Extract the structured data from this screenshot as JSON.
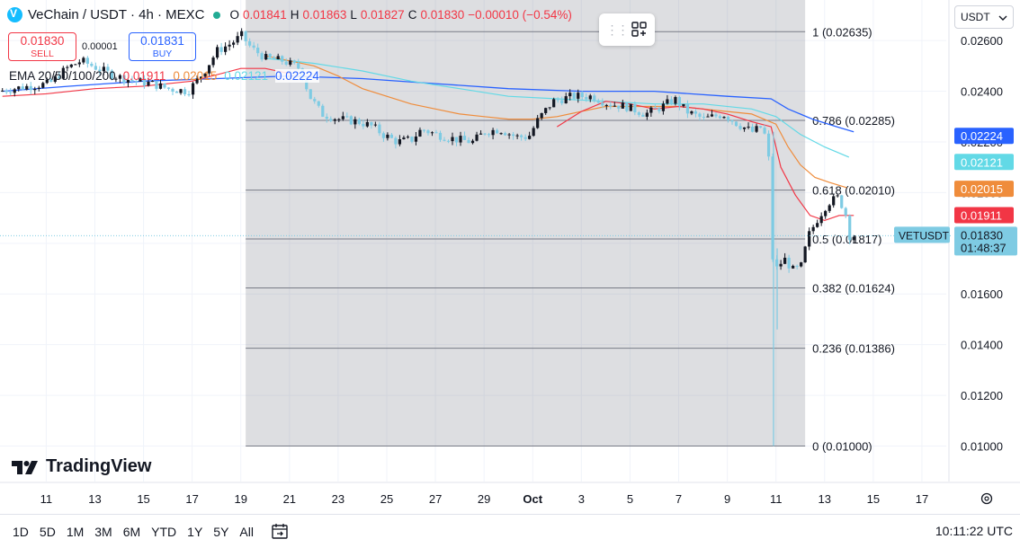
{
  "header": {
    "title": "VeChain / USDT · 4h · MEXC",
    "ohlc": [
      {
        "k": "O",
        "v": "0.01841"
      },
      {
        "k": "H",
        "v": "0.01863"
      },
      {
        "k": "L",
        "v": "0.01827"
      },
      {
        "k": "C",
        "v": "0.01830"
      }
    ],
    "change": "−0.00010 (−0.54%)"
  },
  "trade": {
    "sell_price": "0.01830",
    "sell_label": "SELL",
    "spread": "0.00001",
    "buy_price": "0.01831",
    "buy_label": "BUY"
  },
  "ema_legend": {
    "label": "EMA 20/50/100/200",
    "ema20": "0.01911",
    "ema50": "0.02015",
    "ema100": "0.02121",
    "ema200": "0.02224"
  },
  "currency_select": "USDT",
  "brand": "TradingView",
  "time_ranges": [
    "1D",
    "5D",
    "1M",
    "3M",
    "6M",
    "YTD",
    "1Y",
    "5Y",
    "All"
  ],
  "clock": "10:11:22 UTC",
  "colors": {
    "up": "#131722",
    "down": "#7ecbe3",
    "ema20": "#f23645",
    "ema50": "#ef8c3b",
    "ema100": "#62d9e6",
    "ema200": "#2962ff"
  },
  "chart_data": {
    "type": "candlestick",
    "symbol": "VETUSDT",
    "timeframe": "4h",
    "ylim": [
      0.0086,
      0.0276
    ],
    "y_ticks": [
      "0.02600",
      "0.02400",
      "0.02200",
      "0.02000",
      "0.01800",
      "0.01600",
      "0.01400",
      "0.01200",
      "0.01000"
    ],
    "y_tick_values": [
      0.026,
      0.024,
      0.022,
      0.02,
      0.018,
      0.016,
      0.014,
      0.012,
      0.01
    ],
    "x_range": [
      9.1,
      18.0
    ],
    "x_ticks": [
      {
        "t": 11,
        "label": "11"
      },
      {
        "t": 13,
        "label": "13"
      },
      {
        "t": 15,
        "label": "15"
      },
      {
        "t": 17,
        "label": "17"
      },
      {
        "t": 19,
        "label": "19"
      },
      {
        "t": 21,
        "label": "21"
      },
      {
        "t": 23,
        "label": "23"
      },
      {
        "t": 25,
        "label": "25"
      },
      {
        "t": 27,
        "label": "27"
      },
      {
        "t": 29,
        "label": "29"
      },
      {
        "t": 31,
        "label": "Oct"
      },
      {
        "t": 33,
        "label": "3"
      },
      {
        "t": 35,
        "label": "5"
      },
      {
        "t": 37,
        "label": "7"
      },
      {
        "t": 39,
        "label": "9"
      },
      {
        "t": 41,
        "label": "11"
      },
      {
        "t": 43,
        "label": "13"
      },
      {
        "t": 45,
        "label": "15"
      },
      {
        "t": 47,
        "label": "17"
      }
    ],
    "fib": {
      "t_start": 19.2,
      "t_end": 42.2,
      "levels": [
        {
          "label": "1 (0.02635)",
          "value": 0.02635
        },
        {
          "label": "0.786 (0.02285)",
          "value": 0.02285
        },
        {
          "label": "0.618 (0.02010)",
          "value": 0.0201
        },
        {
          "label": "0.5 (0.01817)",
          "value": 0.01817
        },
        {
          "label": "0.382 (0.01624)",
          "value": 0.01624
        },
        {
          "label": "0.236 (0.01386)",
          "value": 0.01386
        },
        {
          "label": "0 (0.01000)",
          "value": 0.01
        }
      ]
    },
    "last_price": {
      "label": "VETUSDT",
      "value": 0.0183,
      "price": "0.01830",
      "countdown": "01:48:37"
    },
    "ema_tags": [
      {
        "series": "ema200",
        "value": 0.02224,
        "text": "0.02224"
      },
      {
        "series": "ema100",
        "value": 0.02121,
        "text": "0.02121"
      },
      {
        "series": "ema50",
        "value": 0.02015,
        "text": "0.02015"
      },
      {
        "series": "ema20",
        "value": 0.01911,
        "text": "0.01911"
      }
    ],
    "price_path": [
      [
        9.2,
        0.024
      ],
      [
        9.8,
        0.0241
      ],
      [
        10.5,
        0.0242
      ],
      [
        11.3,
        0.0243
      ],
      [
        12.0,
        0.0249
      ],
      [
        12.6,
        0.0252
      ],
      [
        13.3,
        0.0249
      ],
      [
        14.0,
        0.0246
      ],
      [
        14.8,
        0.0244
      ],
      [
        15.5,
        0.0243
      ],
      [
        16.2,
        0.0241
      ],
      [
        17.0,
        0.024
      ],
      [
        17.6,
        0.0247
      ],
      [
        18.2,
        0.0256
      ],
      [
        18.8,
        0.0259
      ],
      [
        19.2,
        0.0262
      ],
      [
        19.6,
        0.0257
      ],
      [
        20.2,
        0.0253
      ],
      [
        20.9,
        0.0252
      ],
      [
        21.6,
        0.0249
      ],
      [
        22.0,
        0.0238
      ],
      [
        22.5,
        0.0231
      ],
      [
        23.2,
        0.0229
      ],
      [
        24.0,
        0.0228
      ],
      [
        24.6,
        0.0226
      ],
      [
        25.0,
        0.0223
      ],
      [
        25.6,
        0.022
      ],
      [
        26.2,
        0.0221
      ],
      [
        26.6,
        0.0225
      ],
      [
        27.2,
        0.0223
      ],
      [
        28.0,
        0.0221
      ],
      [
        28.7,
        0.022
      ],
      [
        29.2,
        0.0224
      ],
      [
        29.8,
        0.0225
      ],
      [
        30.5,
        0.0222
      ],
      [
        31.0,
        0.0222
      ],
      [
        31.4,
        0.0229
      ],
      [
        32.0,
        0.0236
      ],
      [
        32.8,
        0.0238
      ],
      [
        33.6,
        0.0238
      ],
      [
        34.3,
        0.0235
      ],
      [
        35.0,
        0.0234
      ],
      [
        35.8,
        0.0231
      ],
      [
        36.5,
        0.0234
      ],
      [
        37.0,
        0.0237
      ],
      [
        37.5,
        0.0232
      ],
      [
        38.2,
        0.0229
      ],
      [
        39.0,
        0.0231
      ],
      [
        39.6,
        0.0227
      ],
      [
        40.2,
        0.0224
      ],
      [
        40.6,
        0.0226
      ],
      [
        40.85,
        0.0218
      ],
      [
        41.0,
        0.0175
      ],
      [
        41.2,
        0.017
      ],
      [
        41.5,
        0.0174
      ],
      [
        41.9,
        0.0169
      ],
      [
        42.2,
        0.0171
      ],
      [
        42.5,
        0.0183
      ],
      [
        42.9,
        0.019
      ],
      [
        43.3,
        0.0196
      ],
      [
        43.7,
        0.0198
      ],
      [
        44.0,
        0.0193
      ],
      [
        44.2,
        0.0183
      ]
    ],
    "spikes": [
      {
        "t": 40.9,
        "high": 0.0224,
        "low": 0.01
      },
      {
        "t": 41.05,
        "high": 0.0178,
        "low": 0.0146
      }
    ],
    "ema_paths": {
      "ema20": [
        [
          32.0,
          0.0226
        ],
        [
          33.0,
          0.0232
        ],
        [
          34.0,
          0.0236
        ],
        [
          35.0,
          0.0235
        ],
        [
          36.0,
          0.0233
        ],
        [
          37.0,
          0.0234
        ],
        [
          38.0,
          0.0233
        ],
        [
          39.0,
          0.0231
        ],
        [
          40.0,
          0.0228
        ],
        [
          40.8,
          0.0226
        ],
        [
          41.2,
          0.021
        ],
        [
          41.8,
          0.0199
        ],
        [
          42.4,
          0.0191
        ],
        [
          43.0,
          0.0189
        ],
        [
          43.6,
          0.0191
        ],
        [
          44.2,
          0.0191
        ]
      ],
      "ema50": [
        [
          20.0,
          0.0254
        ],
        [
          21.0,
          0.0252
        ],
        [
          22.0,
          0.025
        ],
        [
          23.0,
          0.0246
        ],
        [
          24.0,
          0.0241
        ],
        [
          25.0,
          0.0238
        ],
        [
          26.0,
          0.0235
        ],
        [
          27.0,
          0.0233
        ],
        [
          28.0,
          0.0231
        ],
        [
          29.0,
          0.023
        ],
        [
          30.0,
          0.0229
        ],
        [
          31.0,
          0.0229
        ],
        [
          32.0,
          0.023
        ],
        [
          33.0,
          0.0232
        ],
        [
          34.0,
          0.0234
        ],
        [
          35.0,
          0.0234
        ],
        [
          36.0,
          0.0234
        ],
        [
          37.0,
          0.0234
        ],
        [
          38.0,
          0.0233
        ],
        [
          39.0,
          0.0232
        ],
        [
          40.0,
          0.0231
        ],
        [
          41.0,
          0.0227
        ],
        [
          41.5,
          0.0218
        ],
        [
          42.0,
          0.0211
        ],
        [
          42.6,
          0.0206
        ],
        [
          43.2,
          0.0204
        ],
        [
          43.9,
          0.0202
        ]
      ],
      "ema100": [
        [
          20.0,
          0.0253
        ],
        [
          22.0,
          0.0251
        ],
        [
          24.0,
          0.0248
        ],
        [
          26.0,
          0.0244
        ],
        [
          28.0,
          0.0241
        ],
        [
          30.0,
          0.0238
        ],
        [
          32.0,
          0.0237
        ],
        [
          34.0,
          0.0236
        ],
        [
          36.0,
          0.0235
        ],
        [
          38.0,
          0.0235
        ],
        [
          40.0,
          0.0233
        ],
        [
          41.0,
          0.023
        ],
        [
          42.0,
          0.0223
        ],
        [
          43.0,
          0.0218
        ],
        [
          44.0,
          0.0214
        ]
      ],
      "ema200": [
        [
          9.2,
          0.024
        ],
        [
          12.0,
          0.0242
        ],
        [
          15.0,
          0.0244
        ],
        [
          18.0,
          0.0245
        ],
        [
          21.0,
          0.0246
        ],
        [
          24.0,
          0.0245
        ],
        [
          27.0,
          0.0243
        ],
        [
          30.0,
          0.0241
        ],
        [
          33.0,
          0.024
        ],
        [
          36.0,
          0.024
        ],
        [
          39.0,
          0.0238
        ],
        [
          40.8,
          0.0237
        ],
        [
          41.5,
          0.0233
        ],
        [
          42.5,
          0.0229
        ],
        [
          43.5,
          0.0226
        ],
        [
          44.2,
          0.0224
        ]
      ],
      "ema_early": [
        [
          9.2,
          0.0238
        ],
        [
          11.0,
          0.0239
        ],
        [
          13.0,
          0.0241
        ],
        [
          15.0,
          0.0242
        ],
        [
          17.0,
          0.0244
        ],
        [
          19.0,
          0.0249
        ],
        [
          20.0,
          0.0249
        ],
        [
          21.0,
          0.0247
        ]
      ]
    }
  }
}
